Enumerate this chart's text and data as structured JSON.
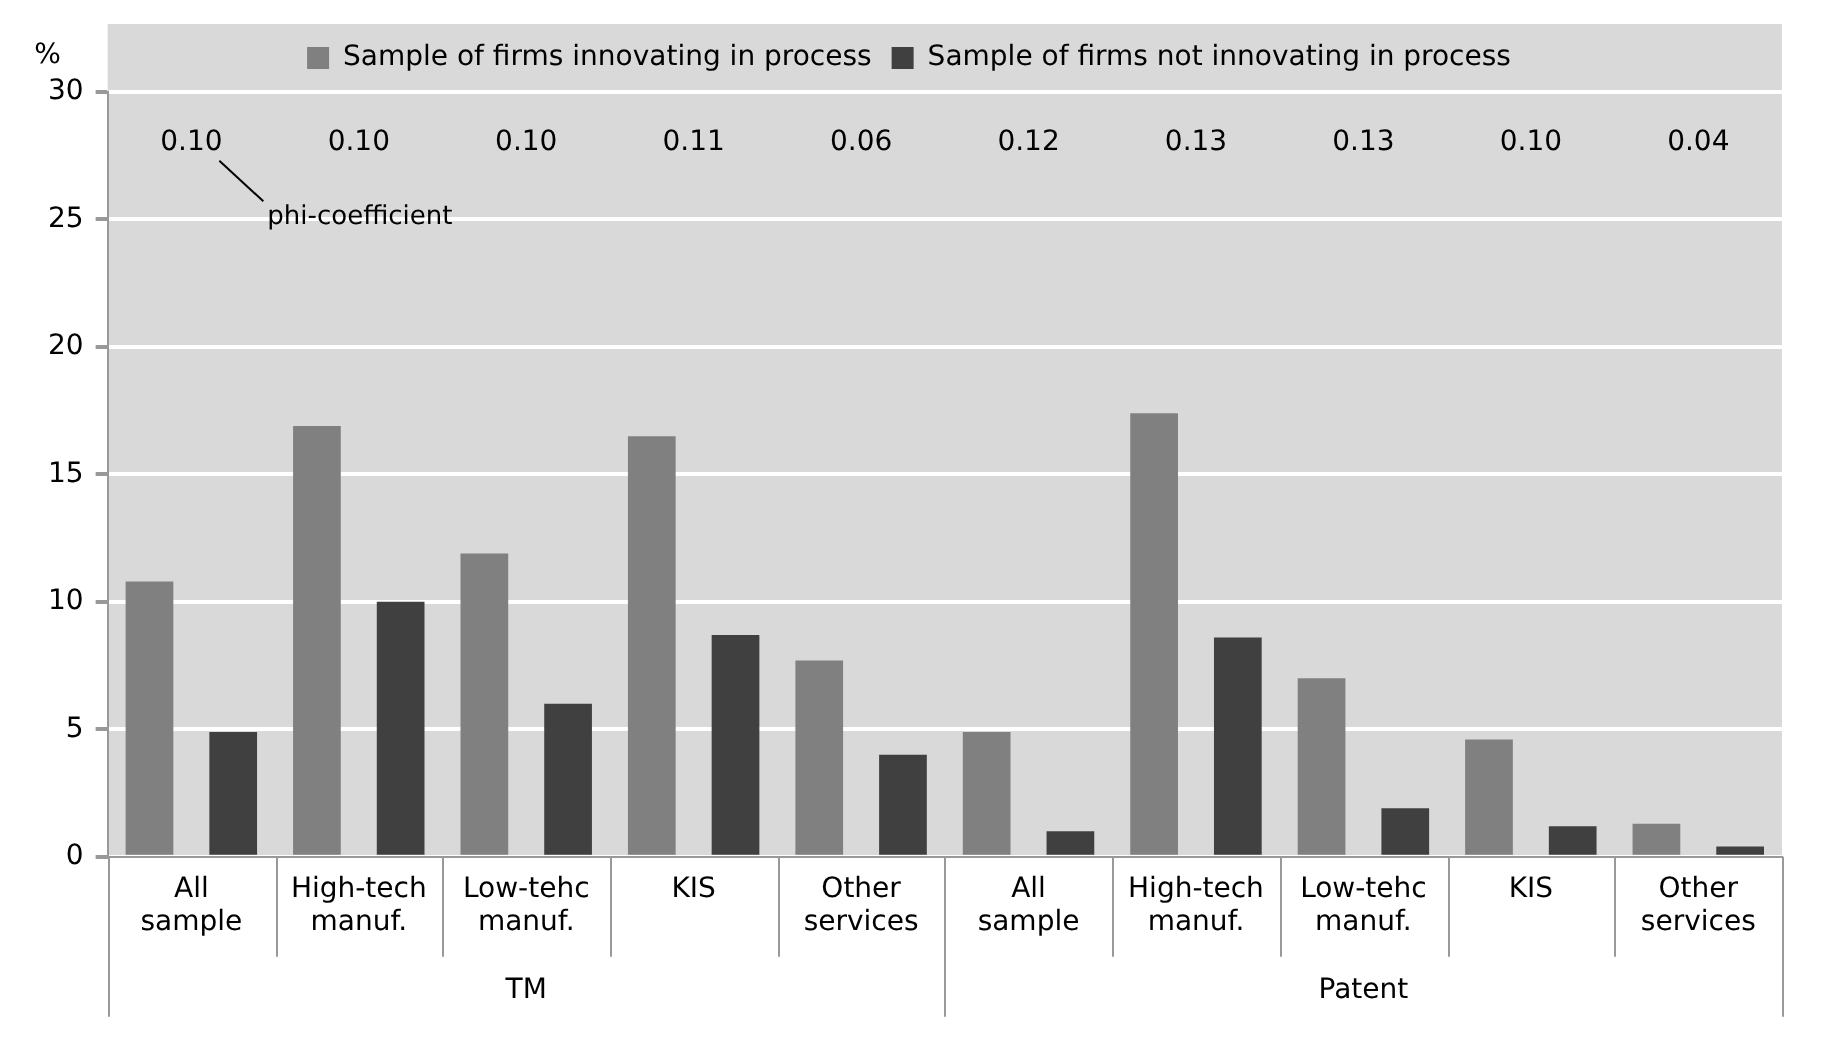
{
  "chart_data": {
    "type": "bar",
    "ylabel": "%",
    "categories": [
      "All sample",
      "High-tech manuf.",
      "Low-tehc manuf.",
      "KIS",
      "Other services",
      "All sample",
      "High-tech manuf.",
      "Low-tehc manuf.",
      "KIS",
      "Other services"
    ],
    "series": [
      {
        "name": "Sample of firms innovating in process",
        "color": "#808080",
        "values": [
          10.8,
          16.9,
          11.9,
          16.5,
          7.7,
          4.9,
          17.4,
          7.0,
          4.6,
          1.3
        ]
      },
      {
        "name": "Sample of firms not innovating in process",
        "color": "#404040",
        "values": [
          4.9,
          10.0,
          6.0,
          8.7,
          4.0,
          1.0,
          8.6,
          1.9,
          1.2,
          0.4
        ]
      }
    ],
    "ylim": [
      0,
      30
    ],
    "yticks": [
      0,
      5,
      10,
      15,
      20,
      25,
      30
    ],
    "grid": "y",
    "legend": "top",
    "annotations": [
      "0.10",
      "0.10",
      "0.10",
      "0.11",
      "0.06",
      "0.12",
      "0.13",
      "0.13",
      "0.10",
      "0.04",
      "phi-coefficient",
      "TM",
      "Patent"
    ]
  }
}
